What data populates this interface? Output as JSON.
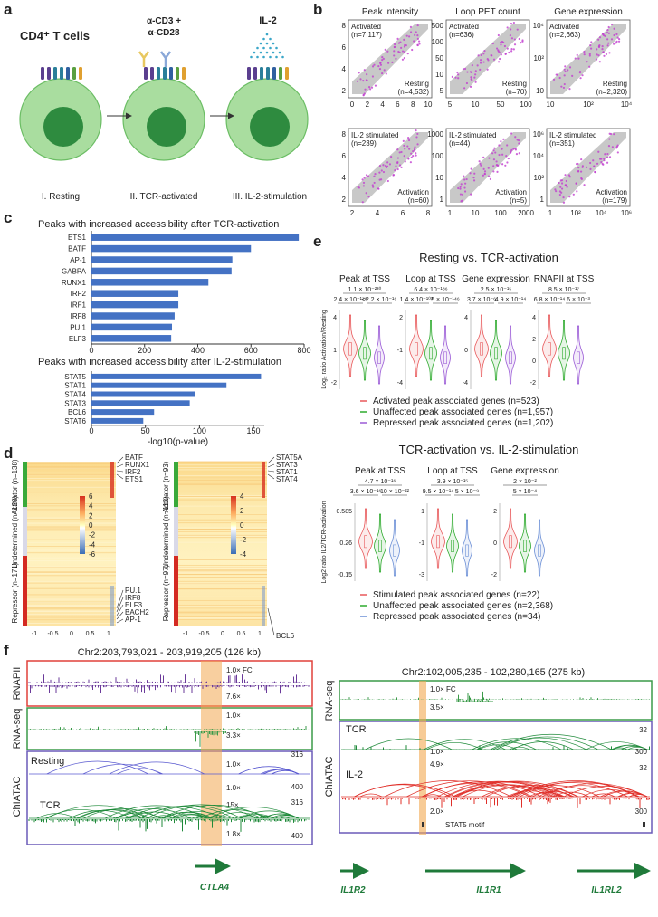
{
  "panels": {
    "a": {
      "label": "a",
      "title": "CD4⁺ T cells",
      "stimulus": [
        "α-CD3 +",
        "α-CD28"
      ],
      "cytokine": "IL-2",
      "stages": [
        "I. Resting",
        "II. TCR-activated",
        "III. IL-2-stimulation"
      ]
    },
    "b": {
      "label": "b",
      "plots": [
        {
          "title": "Peak intensity",
          "top_left": [
            "Activated",
            "(n=7,117)"
          ],
          "bottom_right": [
            "Resting",
            "(n=4,532)"
          ],
          "xticks": [
            0,
            2,
            4,
            6,
            8,
            10
          ],
          "yticks": [
            2,
            4,
            6,
            8
          ]
        },
        {
          "title": "Loop PET count",
          "top_left": [
            "Activated",
            "(n=636)"
          ],
          "bottom_right": [
            "Resting",
            "(n=70)"
          ],
          "xticks": [
            5,
            10,
            50,
            100
          ],
          "yticks": [
            5,
            10,
            50,
            100,
            500
          ]
        },
        {
          "title": "Gene expression",
          "top_left": [
            "Activated",
            "(n=2,663)"
          ],
          "bottom_right": [
            "Resting",
            "(n=2,320)"
          ],
          "xticks": [
            10,
            "10²",
            "10⁴"
          ],
          "yticks": [
            10,
            "10²",
            "10⁴"
          ]
        },
        {
          "top_left": [
            "IL-2 stimulated",
            "(n=239)"
          ],
          "bottom_right": [
            "Activation",
            "(n=60)"
          ],
          "xticks": [
            2,
            4,
            6,
            8
          ],
          "yticks": [
            2,
            4,
            6,
            8
          ]
        },
        {
          "top_left": [
            "IL-2 stimulated",
            "(n=44)"
          ],
          "bottom_right": [
            "Activation",
            "(n=5)"
          ],
          "xticks": [
            1,
            10,
            100,
            2000
          ],
          "yticks": [
            1,
            10,
            100,
            1000
          ]
        },
        {
          "top_left": [
            "IL-2 stimulated",
            "(n=351)"
          ],
          "bottom_right": [
            "Activation",
            "(n=179)"
          ],
          "xticks": [
            1,
            "10²",
            "10⁴",
            "10⁶"
          ],
          "yticks": [
            1,
            "10²",
            "10⁴",
            "10⁶"
          ]
        }
      ]
    },
    "c": {
      "label": "c"
    },
    "d": {
      "label": "d",
      "heatmaps": [
        {
          "groups": [
            "Activator (n=138)",
            "Undetermined (n=128)",
            "Repressor (n=171)"
          ],
          "top_genes": [
            "BATF",
            "RUNX1",
            "IRF2",
            "ETS1"
          ],
          "bottom_genes": [
            "PU.1",
            "IRF8",
            "ELF3",
            "BACH2",
            "AP-1"
          ],
          "xticks": [
            -1,
            -0.5,
            0,
            0.5,
            1
          ],
          "colorbar_ticks": [
            6,
            4,
            2,
            0,
            -2,
            -4,
            -6
          ]
        },
        {
          "groups": [
            "Activator (n=93)",
            "Undetermined (n=112)",
            "Repressor (n=97)"
          ],
          "top_genes": [
            "STAT5A",
            "STAT3",
            "STAT1",
            "STAT4"
          ],
          "bottom_genes": [
            "BCL6"
          ],
          "xticks": [
            -1,
            -0.5,
            0,
            0.5,
            1
          ],
          "colorbar_ticks": [
            4,
            2,
            0,
            -2,
            -4
          ]
        }
      ]
    },
    "e": {
      "label": "e",
      "comparisons": [
        {
          "title": "Resting vs. TCR-activation",
          "ylabel": "Log₂ ratio Activation/Resting",
          "plots": [
            {
              "title": "Peak at TSS",
              "p_top": "1.1 × 10⁻²³⁰",
              "p_pairs": [
                "2.4 × 10⁻¹⁷⁴",
                "<2.2 × 10⁻¹⁶"
              ],
              "yticks": [
                4,
                1,
                -2
              ]
            },
            {
              "title": "Loop at TSS",
              "p_top": "6.4 × 10⁻¹⁸⁶",
              "p_pairs": [
                "1.4 × 10⁻¹⁰³",
                "5 × 10⁻¹⁴⁶"
              ],
              "yticks": [
                2,
                -1,
                -4
              ]
            },
            {
              "title": "Gene expression",
              "p_top": "2.5 × 10⁻¹⁵",
              "p_pairs": [
                "3.7 × 10⁻⁶",
                "4.9 × 10⁻¹⁴"
              ],
              "yticks": [
                4,
                0,
                -4
              ]
            },
            {
              "title": "RNAPII at TSS",
              "p_top": "8.5 × 10⁻¹⁷",
              "p_pairs": [
                "6.8 × 10⁻¹⁴",
                "6 × 10⁻³"
              ],
              "yticks": [
                4,
                2,
                0,
                -2
              ]
            }
          ],
          "legend": [
            {
              "name": "Activated peak associated genes (n=523)",
              "color": "#e8585a"
            },
            {
              "name": "Unaffected peak associated genes (n=1,957)",
              "color": "#2eaa2e"
            },
            {
              "name": "Repressed peak associated genes (n=1,202)",
              "color": "#9a5ad6"
            }
          ]
        },
        {
          "title": "TCR-activation vs. IL-2-stimulation",
          "ylabel": "Log2 ratio IL2/TCR-activation",
          "plots": [
            {
              "title": "Peak at TSS",
              "p_top": "4.7 × 10⁻¹⁶",
              "p_pairs": [
                "3.6 × 10⁻¹⁶",
                "10 × 10⁻²²"
              ],
              "yticks": [
                0.585,
                0.26,
                -0.15
              ]
            },
            {
              "title": "Loop at TSS",
              "p_top": "3.9 × 10⁻¹⁵",
              "p_pairs": [
                "9.5 × 10⁻¹⁴",
                "5 × 10⁻⁹"
              ],
              "yticks": [
                1,
                -1,
                -3
              ]
            },
            {
              "title": "Gene expression",
              "p_top": "2 × 10⁻²",
              "p_pairs": [
                "5 × 10⁻⁴"
              ],
              "yticks": [
                2,
                0,
                -2
              ]
            }
          ],
          "legend": [
            {
              "name": "Stimulated peak associated genes (n=22)",
              "color": "#e8585a"
            },
            {
              "name": "Unaffected peak associated genes (n=2,368)",
              "color": "#2eaa2e"
            },
            {
              "name": "Repressed peak associated genes (n=34)",
              "color": "#6b8fd6"
            }
          ]
        }
      ]
    },
    "f": {
      "label": "f",
      "left": {
        "region": "Chr2:203,793,021 - 203,919,205 (126 kb)",
        "tracks": [
          "RNAPII",
          "RNA-seq",
          "ChIATAC"
        ],
        "samples": [
          "Resting",
          "TCR"
        ],
        "scales": [
          "1.0× FC",
          "7.6×",
          "1.0×",
          "3.3×",
          "1.0×",
          "316",
          "1.0×",
          "400",
          "15×",
          "316",
          "1.8×",
          "400"
        ],
        "gene": "CTLA4"
      },
      "right": {
        "region": "Chr2:102,005,235 - 102,280,165 (275 kb)",
        "tracks": [
          "RNA-seq",
          "ChIATAC"
        ],
        "samples": [
          "TCR",
          "IL-2"
        ],
        "scales": [
          "1.0× FC",
          "3.5×",
          "32",
          "1.0×",
          "300",
          "4.9×",
          "32",
          "2.0×",
          "300"
        ],
        "motif": "STAT5 motif",
        "genes": [
          "IL1R2",
          "IL1R1",
          "IL1RL2"
        ]
      }
    }
  },
  "chart_data": [
    {
      "type": "bar",
      "title": "Peaks with increased accessibility after TCR-activation",
      "categories": [
        "ETS1",
        "BATF",
        "AP-1",
        "GABPA",
        "RUNX1",
        "IRF2",
        "IRF1",
        "IRF8",
        "PU.1",
        "ELF3"
      ],
      "values": [
        780,
        600,
        530,
        527,
        440,
        327,
        327,
        313,
        303,
        300
      ],
      "color": "#4472c4",
      "xlim": [
        0,
        800
      ],
      "xticks": [
        0,
        200,
        400,
        600,
        800
      ]
    },
    {
      "type": "bar",
      "title": "Peaks with increased accessibility after IL-2-stimulation",
      "categories": [
        "STAT5",
        "STAT1",
        "STAT4",
        "STAT3",
        "BCL6",
        "STAT6"
      ],
      "values": [
        157,
        125,
        96,
        91,
        58,
        48
      ],
      "color": "#4472c4",
      "xlim": [
        0,
        160
      ],
      "xticks": [
        0,
        50,
        100,
        150
      ],
      "xlabel": "-log10(p-value)"
    }
  ]
}
